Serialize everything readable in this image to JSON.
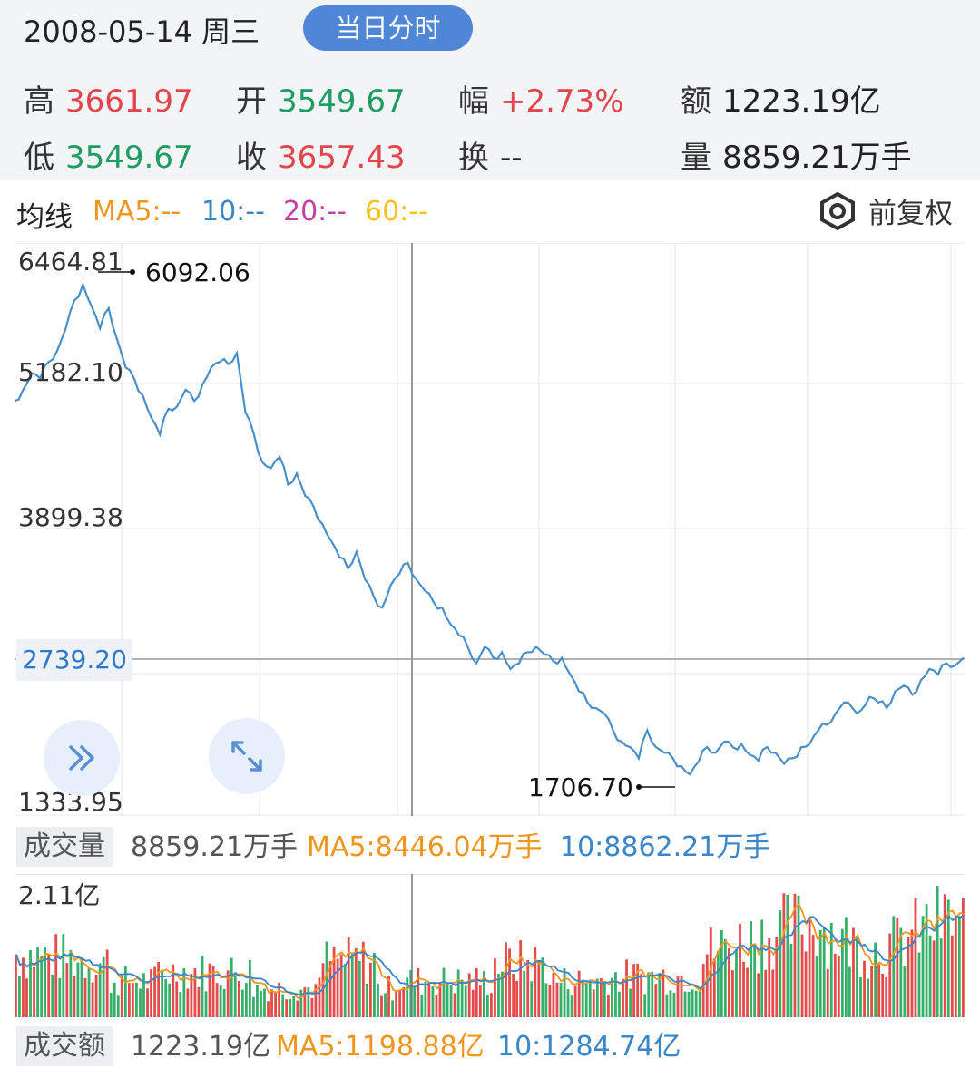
{
  "header": {
    "date": "2008-05-14 周三",
    "intraday_button": "当日分时",
    "quotes": {
      "high": {
        "label": "高",
        "value": "3661.97"
      },
      "open": {
        "label": "开",
        "value": "3549.67"
      },
      "amplitude": {
        "label": "幅",
        "value": "+2.73%"
      },
      "amount": {
        "label": "额",
        "value": "1223.19亿"
      },
      "low": {
        "label": "低",
        "value": "3549.67"
      },
      "close": {
        "label": "收",
        "value": "3657.43"
      },
      "turnover": {
        "label": "换",
        "value": "--"
      },
      "volume": {
        "label": "量",
        "value": "8859.21万手"
      }
    }
  },
  "ma_row": {
    "title": "均线",
    "items": [
      {
        "text": "MA5:--",
        "color": "#f0961e"
      },
      {
        "text": "10:--",
        "color": "#3a86c8"
      },
      {
        "text": "20:--",
        "color": "#c53fa3"
      },
      {
        "text": "60:--",
        "color": "#f2c318"
      }
    ],
    "adjust_label": "前复权",
    "adjust_icon": "hexagon-settings-icon"
  },
  "main_chart": {
    "y_labels": [
      "6464.81",
      "5182.10",
      "3899.38",
      "1333.95"
    ],
    "crosshair_value": "2739.20",
    "high_annotation": "6092.06",
    "low_annotation": "1706.70",
    "line_color": "#4a90c8",
    "buttons": {
      "expand": "double-chevron-right-icon",
      "fullscreen": "expand-arrows-icon"
    }
  },
  "chart_data": {
    "type": "line",
    "title": "",
    "ylim": [
      1333.95,
      6464.81
    ],
    "y_ticks": [
      6464.81,
      5182.1,
      3899.38,
      1333.95
    ],
    "y": [
      5050,
      5150,
      5300,
      5250,
      5400,
      5500,
      5700,
      5950,
      6092,
      5900,
      5700,
      5880,
      5600,
      5350,
      5250,
      5100,
      4900,
      4750,
      4980,
      5000,
      5150,
      5050,
      5200,
      5350,
      5400,
      5380,
      5480,
      4950,
      4750,
      4500,
      4450,
      4550,
      4300,
      4400,
      4200,
      4100,
      3950,
      3800,
      3650,
      3550,
      3700,
      3450,
      3300,
      3200,
      3400,
      3500,
      3600,
      3450,
      3350,
      3250,
      3200,
      3050,
      2950,
      2850,
      2700,
      2850,
      2750,
      2800,
      2650,
      2700,
      2800,
      2850,
      2780,
      2720,
      2750,
      2600,
      2450,
      2350,
      2300,
      2250,
      2100,
      2000,
      1950,
      1850,
      2100,
      1950,
      1900,
      1850,
      1780,
      1706,
      1820,
      1950,
      1900,
      2000,
      1950,
      1980,
      1880,
      1830,
      1950,
      1900,
      1800,
      1850,
      1950,
      1980,
      2100,
      2150,
      2250,
      2350,
      2300,
      2280,
      2400,
      2350,
      2300,
      2450,
      2500,
      2420,
      2550,
      2650,
      2600,
      2700,
      2680,
      2750
    ]
  },
  "volume_section": {
    "tag": "成交量",
    "value": "8859.21万手",
    "ma5": "MA5:8446.04万手",
    "ma10": "10:8862.21万手",
    "max_label": "2.11亿",
    "colors": {
      "up": "#e54b4b",
      "down": "#35b06a",
      "ma5": "#f0961e",
      "ma10": "#3a86c8"
    }
  },
  "amount_section": {
    "tag": "成交额",
    "value": "1223.19亿",
    "ma5": "MA5:1198.88亿",
    "ma10": "10:1284.74亿"
  }
}
